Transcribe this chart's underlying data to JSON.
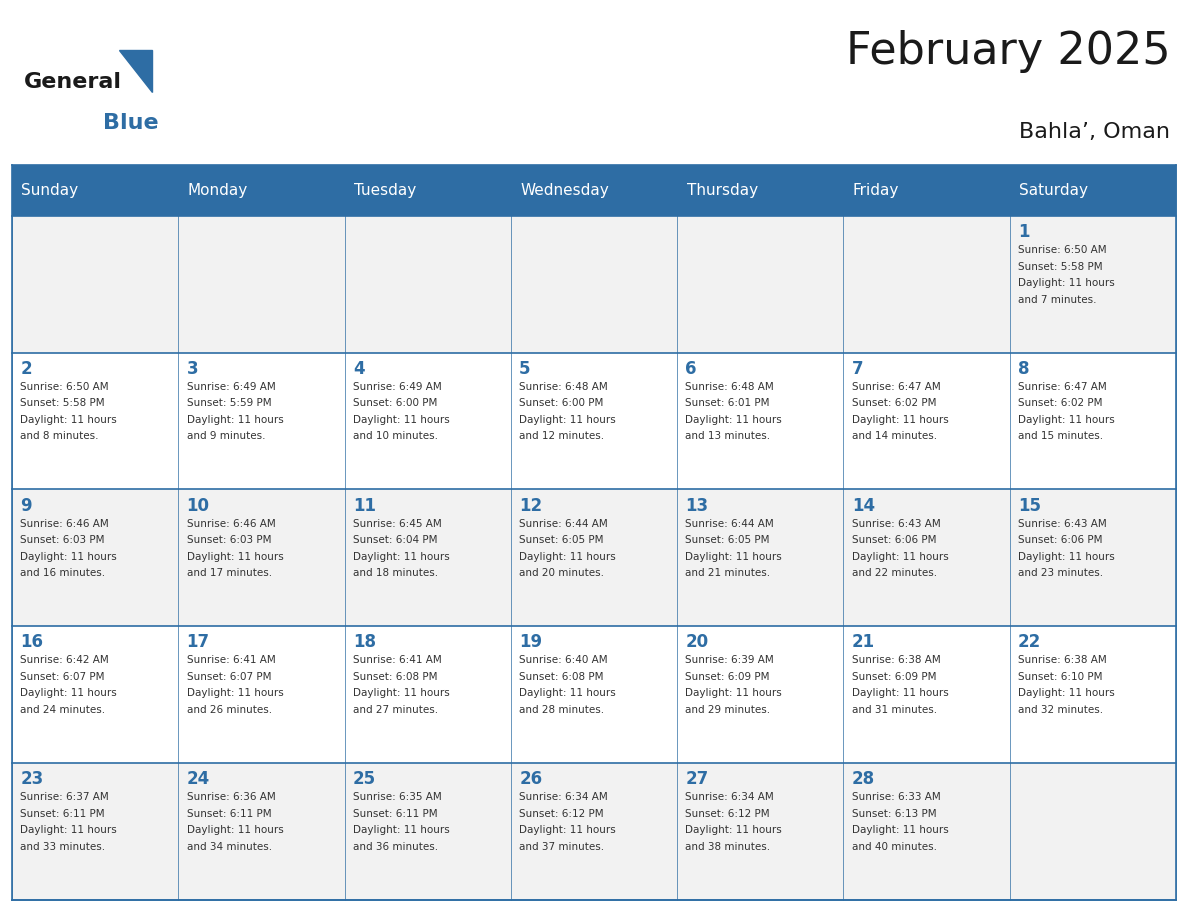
{
  "title": "February 2025",
  "subtitle": "Bahla’, Oman",
  "header_bg": "#2E6DA4",
  "header_text_color": "#FFFFFF",
  "cell_bg_light": "#F2F2F2",
  "cell_bg_white": "#FFFFFF",
  "day_headers": [
    "Sunday",
    "Monday",
    "Tuesday",
    "Wednesday",
    "Thursday",
    "Friday",
    "Saturday"
  ],
  "title_color": "#1a1a1a",
  "subtitle_color": "#1a1a1a",
  "day_num_color": "#2E6DA4",
  "cell_text_color": "#333333",
  "grid_color": "#2E6DA4",
  "weeks": [
    [
      {
        "day": null,
        "info": null
      },
      {
        "day": null,
        "info": null
      },
      {
        "day": null,
        "info": null
      },
      {
        "day": null,
        "info": null
      },
      {
        "day": null,
        "info": null
      },
      {
        "day": null,
        "info": null
      },
      {
        "day": 1,
        "info": "Sunrise: 6:50 AM\nSunset: 5:58 PM\nDaylight: 11 hours\nand 7 minutes."
      }
    ],
    [
      {
        "day": 2,
        "info": "Sunrise: 6:50 AM\nSunset: 5:58 PM\nDaylight: 11 hours\nand 8 minutes."
      },
      {
        "day": 3,
        "info": "Sunrise: 6:49 AM\nSunset: 5:59 PM\nDaylight: 11 hours\nand 9 minutes."
      },
      {
        "day": 4,
        "info": "Sunrise: 6:49 AM\nSunset: 6:00 PM\nDaylight: 11 hours\nand 10 minutes."
      },
      {
        "day": 5,
        "info": "Sunrise: 6:48 AM\nSunset: 6:00 PM\nDaylight: 11 hours\nand 12 minutes."
      },
      {
        "day": 6,
        "info": "Sunrise: 6:48 AM\nSunset: 6:01 PM\nDaylight: 11 hours\nand 13 minutes."
      },
      {
        "day": 7,
        "info": "Sunrise: 6:47 AM\nSunset: 6:02 PM\nDaylight: 11 hours\nand 14 minutes."
      },
      {
        "day": 8,
        "info": "Sunrise: 6:47 AM\nSunset: 6:02 PM\nDaylight: 11 hours\nand 15 minutes."
      }
    ],
    [
      {
        "day": 9,
        "info": "Sunrise: 6:46 AM\nSunset: 6:03 PM\nDaylight: 11 hours\nand 16 minutes."
      },
      {
        "day": 10,
        "info": "Sunrise: 6:46 AM\nSunset: 6:03 PM\nDaylight: 11 hours\nand 17 minutes."
      },
      {
        "day": 11,
        "info": "Sunrise: 6:45 AM\nSunset: 6:04 PM\nDaylight: 11 hours\nand 18 minutes."
      },
      {
        "day": 12,
        "info": "Sunrise: 6:44 AM\nSunset: 6:05 PM\nDaylight: 11 hours\nand 20 minutes."
      },
      {
        "day": 13,
        "info": "Sunrise: 6:44 AM\nSunset: 6:05 PM\nDaylight: 11 hours\nand 21 minutes."
      },
      {
        "day": 14,
        "info": "Sunrise: 6:43 AM\nSunset: 6:06 PM\nDaylight: 11 hours\nand 22 minutes."
      },
      {
        "day": 15,
        "info": "Sunrise: 6:43 AM\nSunset: 6:06 PM\nDaylight: 11 hours\nand 23 minutes."
      }
    ],
    [
      {
        "day": 16,
        "info": "Sunrise: 6:42 AM\nSunset: 6:07 PM\nDaylight: 11 hours\nand 24 minutes."
      },
      {
        "day": 17,
        "info": "Sunrise: 6:41 AM\nSunset: 6:07 PM\nDaylight: 11 hours\nand 26 minutes."
      },
      {
        "day": 18,
        "info": "Sunrise: 6:41 AM\nSunset: 6:08 PM\nDaylight: 11 hours\nand 27 minutes."
      },
      {
        "day": 19,
        "info": "Sunrise: 6:40 AM\nSunset: 6:08 PM\nDaylight: 11 hours\nand 28 minutes."
      },
      {
        "day": 20,
        "info": "Sunrise: 6:39 AM\nSunset: 6:09 PM\nDaylight: 11 hours\nand 29 minutes."
      },
      {
        "day": 21,
        "info": "Sunrise: 6:38 AM\nSunset: 6:09 PM\nDaylight: 11 hours\nand 31 minutes."
      },
      {
        "day": 22,
        "info": "Sunrise: 6:38 AM\nSunset: 6:10 PM\nDaylight: 11 hours\nand 32 minutes."
      }
    ],
    [
      {
        "day": 23,
        "info": "Sunrise: 6:37 AM\nSunset: 6:11 PM\nDaylight: 11 hours\nand 33 minutes."
      },
      {
        "day": 24,
        "info": "Sunrise: 6:36 AM\nSunset: 6:11 PM\nDaylight: 11 hours\nand 34 minutes."
      },
      {
        "day": 25,
        "info": "Sunrise: 6:35 AM\nSunset: 6:11 PM\nDaylight: 11 hours\nand 36 minutes."
      },
      {
        "day": 26,
        "info": "Sunrise: 6:34 AM\nSunset: 6:12 PM\nDaylight: 11 hours\nand 37 minutes."
      },
      {
        "day": 27,
        "info": "Sunrise: 6:34 AM\nSunset: 6:12 PM\nDaylight: 11 hours\nand 38 minutes."
      },
      {
        "day": 28,
        "info": "Sunrise: 6:33 AM\nSunset: 6:13 PM\nDaylight: 11 hours\nand 40 minutes."
      },
      {
        "day": null,
        "info": null
      }
    ]
  ],
  "logo_text_general": "General",
  "logo_text_blue": "Blue",
  "logo_color_general": "#1a1a1a",
  "logo_color_blue": "#2E6DA4",
  "logo_triangle_color": "#2E6DA4"
}
